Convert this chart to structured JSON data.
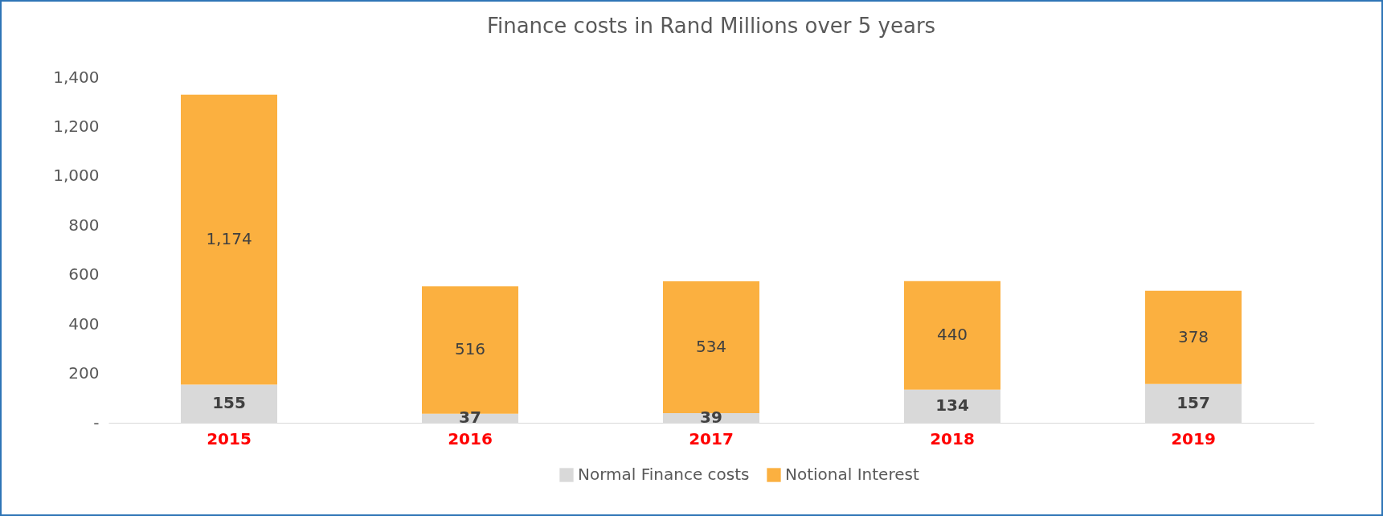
{
  "chart_data": {
    "type": "bar",
    "title": "Finance costs in Rand Millions over 5 years",
    "categories": [
      "2015",
      "2016",
      "2017",
      "2018",
      "2019"
    ],
    "stacked": true,
    "legend": "bottom",
    "grid": false,
    "series": [
      {
        "name": "Normal Finance costs",
        "color": "#d9d9d9",
        "values": [
          155,
          37,
          39,
          134,
          157
        ],
        "value_labels": [
          "155",
          "37",
          "39",
          "134",
          "157"
        ]
      },
      {
        "name": "Notional Interest",
        "color": "#fbb040",
        "values": [
          1174,
          516,
          534,
          440,
          378
        ],
        "value_labels": [
          "1,174",
          "516",
          "534",
          "440",
          "378"
        ]
      }
    ],
    "ylim": [
      0,
      1400
    ],
    "yticks": [
      {
        "value": 0,
        "label": "-"
      },
      200,
      400,
      600,
      800,
      {
        "value": 1000,
        "label": "1,000"
      },
      {
        "value": 1200,
        "label": "1,200"
      },
      {
        "value": 1400,
        "label": "1,400"
      }
    ]
  }
}
